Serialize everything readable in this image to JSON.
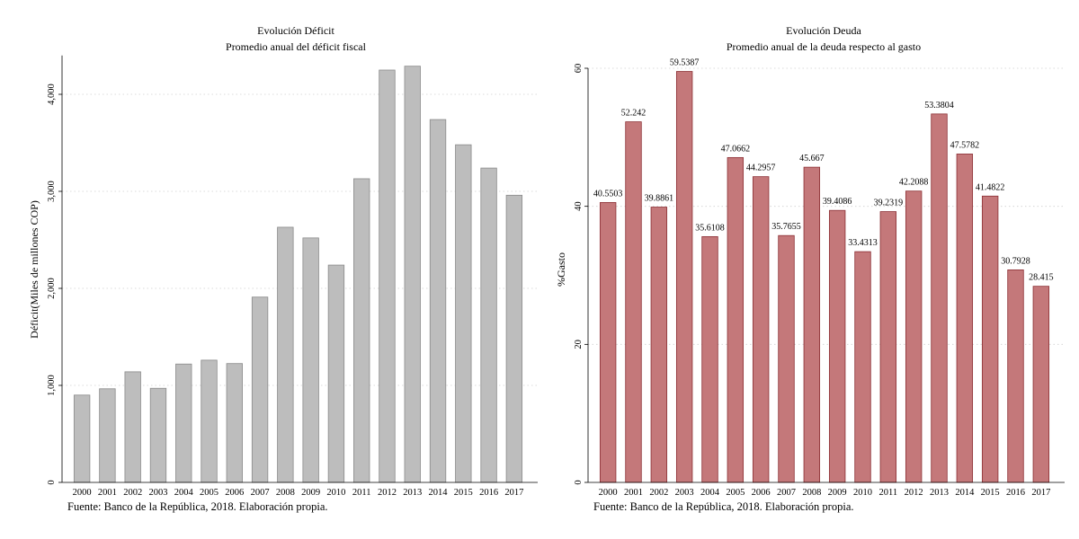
{
  "chart_data": [
    {
      "type": "bar",
      "title": "Evolución Déficit",
      "subtitle": "Promedio anual del déficit fiscal",
      "xlabel": "",
      "ylabel": "Déficit(Miles de millones COP)",
      "categories": [
        "2000",
        "2001",
        "2002",
        "2003",
        "2004",
        "2005",
        "2006",
        "2007",
        "2008",
        "2009",
        "2010",
        "2011",
        "2012",
        "2013",
        "2014",
        "2015",
        "2016",
        "2017"
      ],
      "values": [
        900,
        965,
        1140,
        970,
        1220,
        1260,
        1225,
        1910,
        2630,
        2520,
        2240,
        3130,
        4250,
        4290,
        3740,
        3480,
        3240,
        2960
      ],
      "ylim": [
        0,
        4400
      ],
      "yticks": [
        0,
        1000,
        2000,
        3000,
        4000
      ],
      "ytick_labels": [
        "0",
        "1,000",
        "2,000",
        "3,000",
        "4,000"
      ],
      "data_labels": null,
      "bar_color": "#bdbdbd",
      "bar_stroke": "#8a8a8a",
      "grid": true,
      "note": "Fuente: Banco de la República, 2018. Elaboración propia."
    },
    {
      "type": "bar",
      "title": "Evolución Deuda",
      "subtitle": "Promedio anual de la deuda respecto al gasto",
      "xlabel": "",
      "ylabel": "%Gasto",
      "categories": [
        "2000",
        "2001",
        "2002",
        "2003",
        "2004",
        "2005",
        "2006",
        "2007",
        "2008",
        "2009",
        "2010",
        "2011",
        "2012",
        "2013",
        "2014",
        "2015",
        "2016",
        "2017"
      ],
      "values": [
        40.5503,
        52.242,
        39.8861,
        59.5387,
        35.6108,
        47.0662,
        44.2957,
        35.7655,
        45.667,
        39.4086,
        33.4313,
        39.2319,
        42.2088,
        53.3804,
        47.5782,
        41.4822,
        30.7928,
        28.415
      ],
      "ylim": [
        0,
        60
      ],
      "yticks": [
        0,
        20,
        40,
        60
      ],
      "ytick_labels": [
        "0",
        "20",
        "40",
        "60"
      ],
      "data_labels": [
        "40.5503",
        "52.242",
        "39.8861",
        "59.5387",
        "35.6108",
        "47.0662",
        "44.2957",
        "35.7655",
        "45.667",
        "39.4086",
        "33.4313",
        "39.2319",
        "42.2088",
        "53.3804",
        "47.5782",
        "41.4822",
        "30.7928",
        "28.415"
      ],
      "bar_color": "#c4787a",
      "bar_stroke": "#8b2e33",
      "grid": true,
      "note": "Fuente: Banco de la República, 2018. Elaboración propia."
    }
  ]
}
